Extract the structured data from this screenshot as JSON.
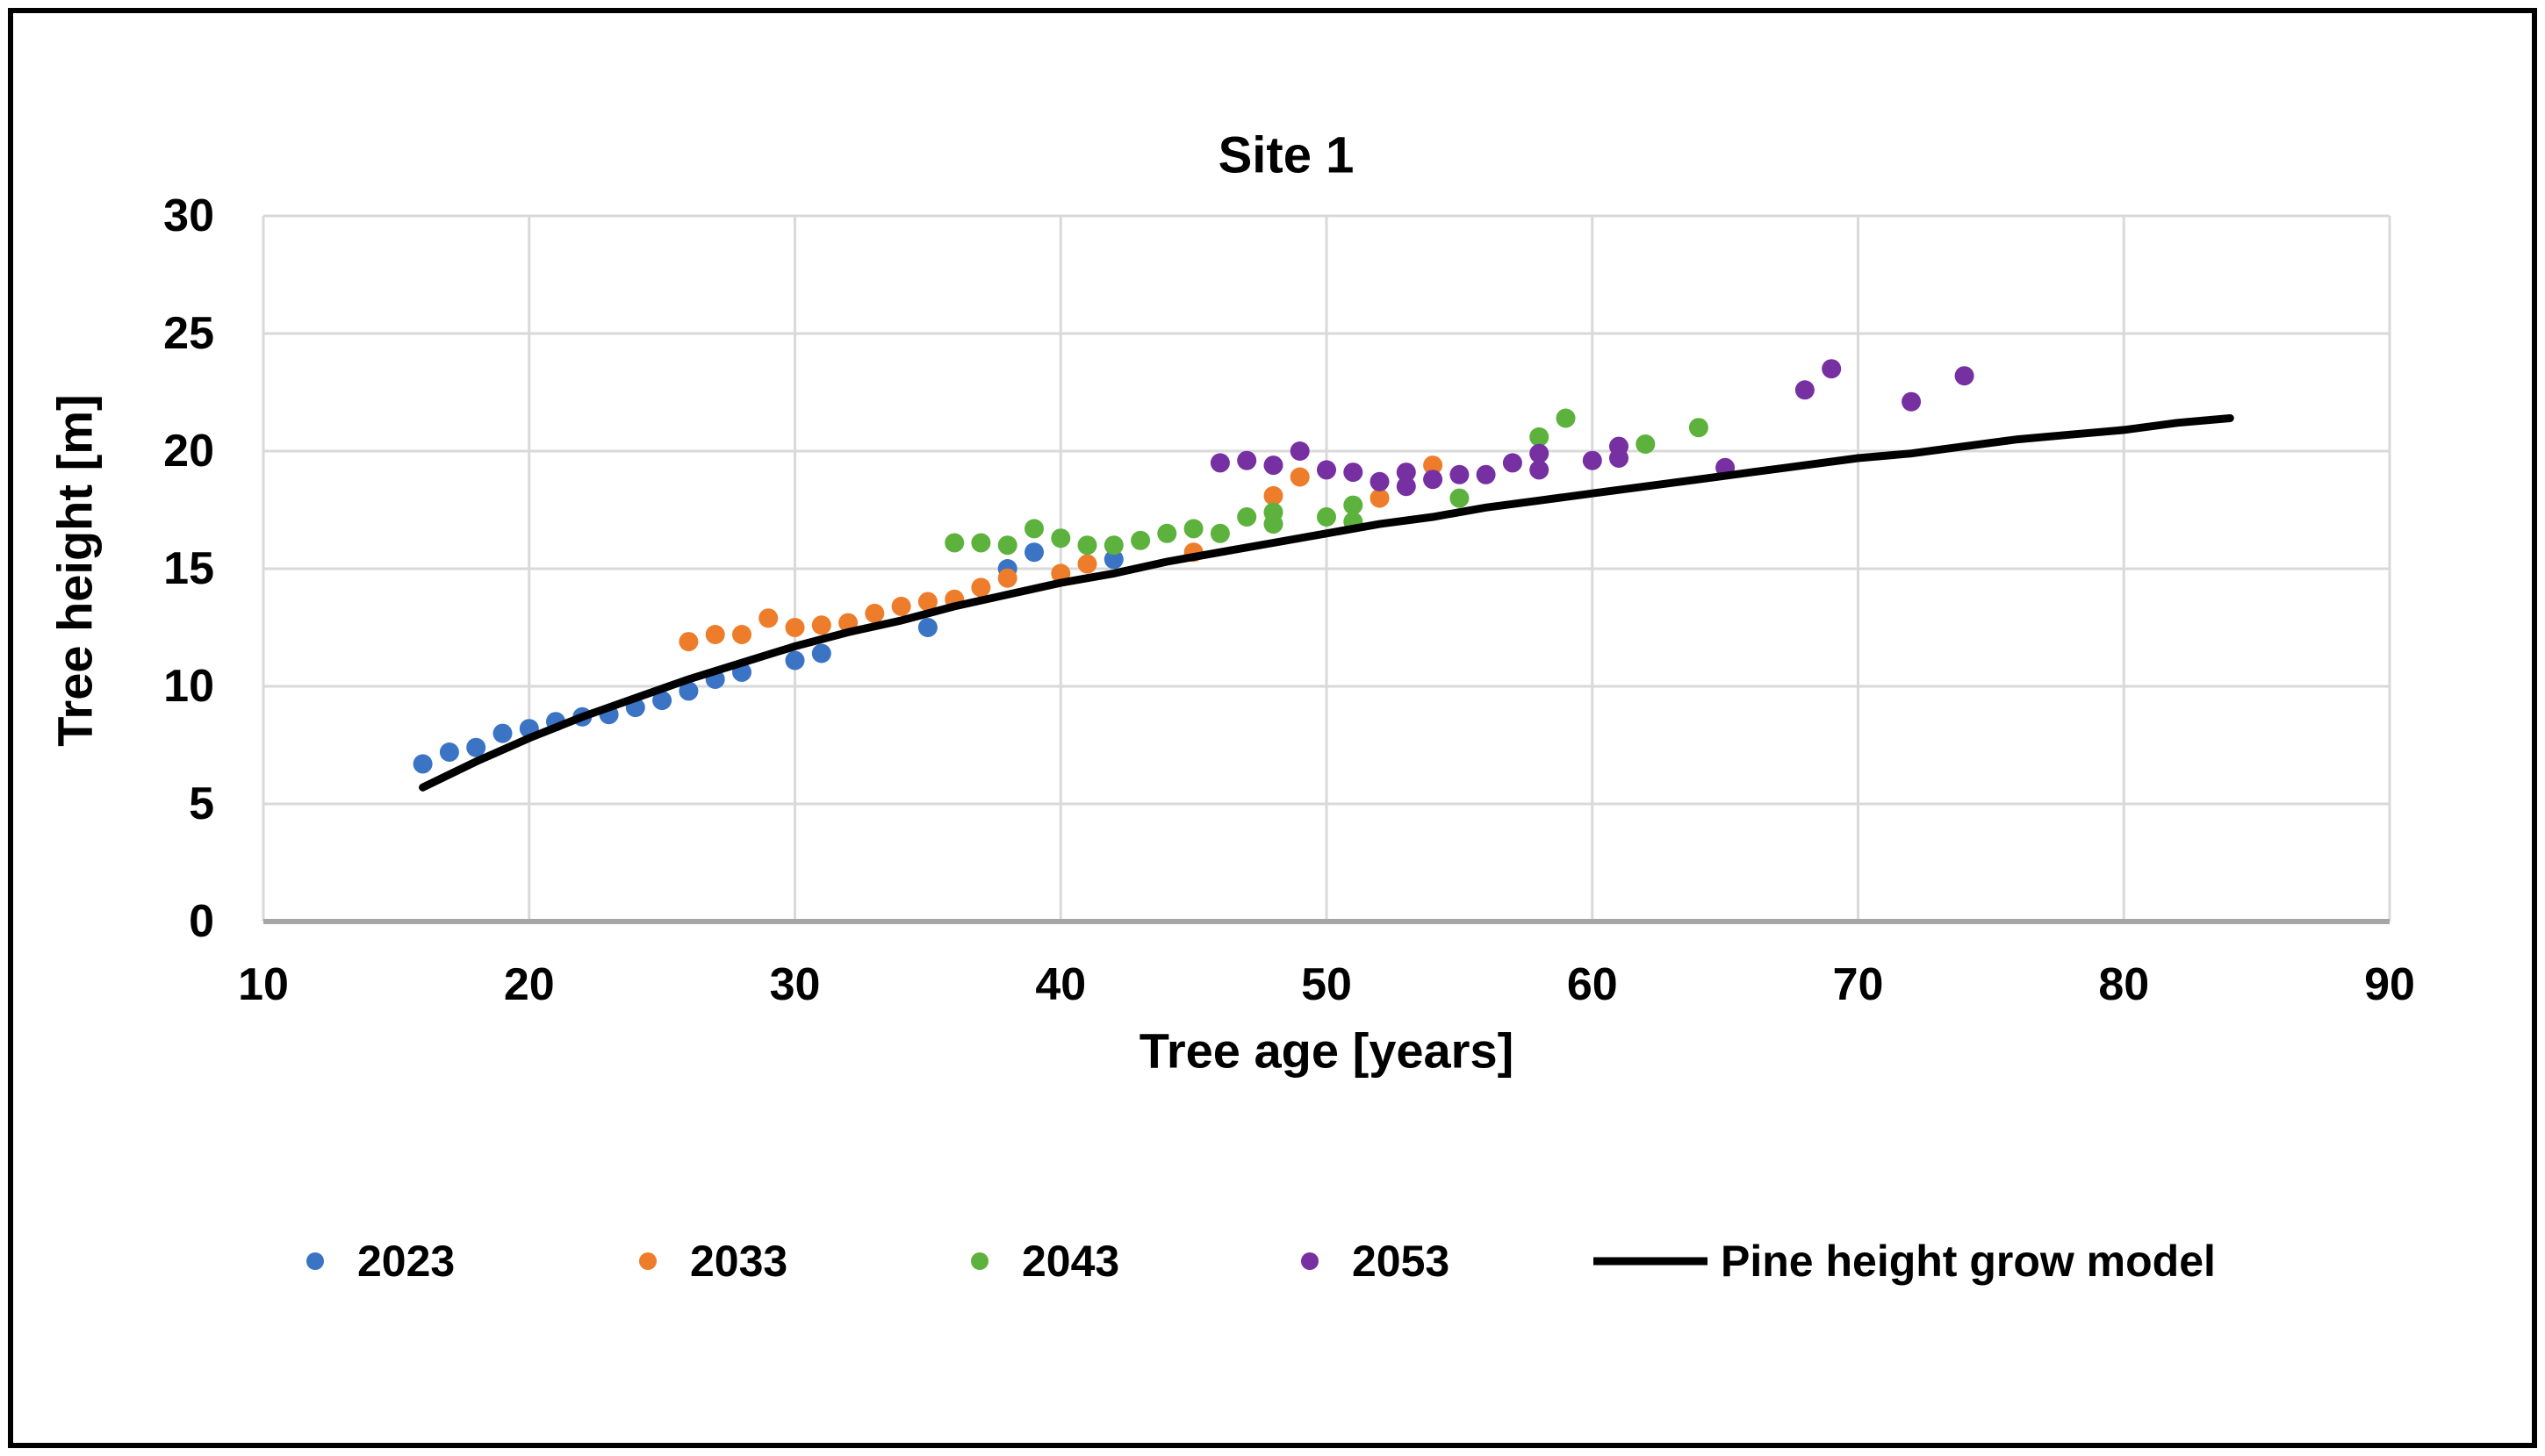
{
  "figure": {
    "title": "Site 1",
    "x_axis_title": "Tree age [years]",
    "y_axis_title": "Tree height [m]"
  },
  "chart_data": {
    "type": "scatter",
    "title": "Site 1",
    "xlabel": "Tree age [years]",
    "ylabel": "Tree height [m]",
    "xlim": [
      10,
      90
    ],
    "ylim": [
      0,
      30
    ],
    "xticks": [
      10,
      20,
      30,
      40,
      50,
      60,
      70,
      80,
      90
    ],
    "yticks": [
      0,
      5,
      10,
      15,
      20,
      25,
      30
    ],
    "grid": true,
    "grid_color": "#D9D9D9",
    "axis_line_color": "#A6A6A6",
    "text_color": "#000000",
    "legend_position": "bottom",
    "series": [
      {
        "name": "2023",
        "color": "#3B74C4",
        "x": [
          16,
          17,
          18,
          19,
          20,
          21,
          22,
          23,
          24,
          25,
          26,
          27,
          28,
          30,
          31,
          35,
          38,
          39,
          42
        ],
        "y": [
          6.7,
          7.2,
          7.4,
          8.0,
          8.2,
          8.5,
          8.7,
          8.8,
          9.1,
          9.4,
          9.8,
          10.3,
          10.6,
          11.1,
          11.4,
          12.5,
          15.0,
          15.7,
          15.4
        ]
      },
      {
        "name": "2033",
        "color": "#ED7D2B",
        "x": [
          26,
          27,
          28,
          29,
          30,
          31,
          32,
          33,
          34,
          35,
          36,
          37,
          38,
          40,
          41,
          45,
          48,
          49,
          52,
          54
        ],
        "y": [
          11.9,
          12.2,
          12.2,
          12.9,
          12.5,
          12.6,
          12.7,
          13.1,
          13.4,
          13.6,
          13.7,
          14.2,
          14.6,
          14.8,
          15.2,
          15.7,
          18.1,
          18.9,
          18.0,
          19.4
        ]
      },
      {
        "name": "2043",
        "color": "#5CB23C",
        "x": [
          36,
          37,
          38,
          39,
          40,
          41,
          42,
          43,
          44,
          45,
          46,
          47,
          48,
          48,
          50,
          51,
          51,
          55,
          58,
          59,
          62,
          64
        ],
        "y": [
          16.1,
          16.1,
          16.0,
          16.7,
          16.3,
          16.0,
          16.0,
          16.2,
          16.5,
          16.7,
          16.5,
          17.2,
          17.4,
          16.9,
          17.2,
          17.7,
          17.0,
          18.0,
          20.6,
          21.4,
          20.3,
          21.0
        ]
      },
      {
        "name": "2053",
        "color": "#7630A1",
        "x": [
          46,
          47,
          48,
          49,
          50,
          51,
          52,
          53,
          53,
          54,
          55,
          56,
          57,
          58,
          58,
          60,
          61,
          61,
          65,
          68,
          69,
          72,
          74
        ],
        "y": [
          19.5,
          19.6,
          19.4,
          20.0,
          19.2,
          19.1,
          18.7,
          19.1,
          18.5,
          18.8,
          19.0,
          19.0,
          19.5,
          19.9,
          19.2,
          19.6,
          20.2,
          19.7,
          19.3,
          22.6,
          23.5,
          22.1,
          23.2
        ]
      }
    ],
    "model_line": {
      "name": "Pine height grow model",
      "color": "#000000",
      "x": [
        16,
        18,
        20,
        22,
        24,
        26,
        28,
        30,
        32,
        34,
        36,
        38,
        40,
        42,
        44,
        46,
        48,
        50,
        52,
        54,
        56,
        58,
        60,
        62,
        64,
        66,
        68,
        70,
        72,
        74,
        76,
        78,
        80,
        82,
        84
      ],
      "y": [
        5.7,
        6.8,
        7.8,
        8.7,
        9.5,
        10.3,
        11.0,
        11.7,
        12.3,
        12.8,
        13.4,
        13.9,
        14.4,
        14.8,
        15.3,
        15.7,
        16.1,
        16.5,
        16.9,
        17.2,
        17.6,
        17.9,
        18.2,
        18.5,
        18.8,
        19.1,
        19.4,
        19.7,
        19.9,
        20.2,
        20.5,
        20.7,
        20.9,
        21.2,
        21.4
      ]
    },
    "legend_entries": [
      "2023",
      "2033",
      "2043",
      "2053",
      "Pine height grow model"
    ]
  }
}
